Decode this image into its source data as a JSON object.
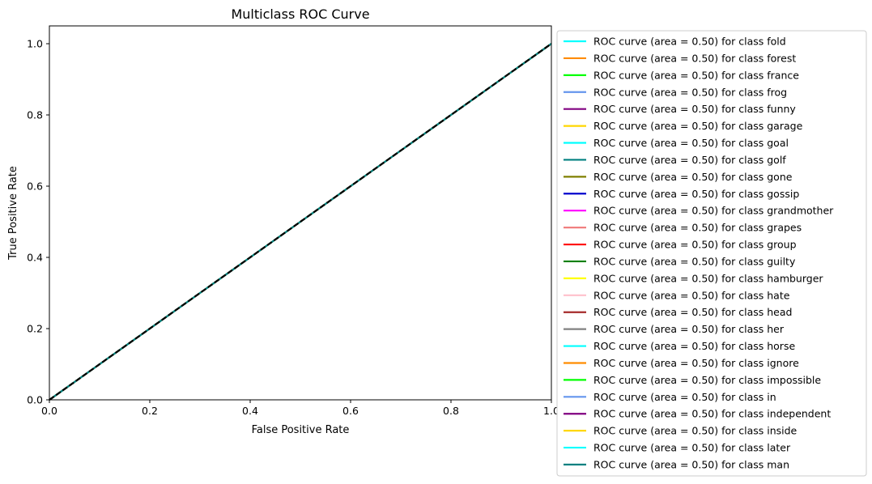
{
  "chart_data": {
    "type": "line",
    "title": "Multiclass ROC Curve",
    "xlabel": "False Positive Rate",
    "ylabel": "True Positive Rate",
    "xlim": [
      0.0,
      1.0
    ],
    "ylim": [
      0.0,
      1.05
    ],
    "x_ticks": [
      "0.0",
      "0.2",
      "0.4",
      "0.6",
      "0.8",
      "1.0"
    ],
    "y_ticks": [
      "0.0",
      "0.2",
      "0.4",
      "0.6",
      "0.8",
      "1.0"
    ],
    "grid": false,
    "legend_position": "outside-right",
    "diagonal": {
      "x": [
        0,
        1
      ],
      "y": [
        0,
        1
      ],
      "color": "#000000",
      "style": "dashed"
    },
    "series": [
      {
        "name": "ROC curve (area = 0.50) for class fold",
        "color": "#00ffff",
        "x": [
          0,
          1
        ],
        "y": [
          0,
          1
        ]
      },
      {
        "name": "ROC curve (area = 0.50) for class forest",
        "color": "#ff8c00",
        "x": [
          0,
          1
        ],
        "y": [
          0,
          1
        ]
      },
      {
        "name": "ROC curve (area = 0.50) for class france",
        "color": "#00ff00",
        "x": [
          0,
          1
        ],
        "y": [
          0,
          1
        ]
      },
      {
        "name": "ROC curve (area = 0.50) for class frog",
        "color": "#6495ed",
        "x": [
          0,
          1
        ],
        "y": [
          0,
          1
        ]
      },
      {
        "name": "ROC curve (area = 0.50) for class funny",
        "color": "#800080",
        "x": [
          0,
          1
        ],
        "y": [
          0,
          1
        ]
      },
      {
        "name": "ROC curve (area = 0.50) for class garage",
        "color": "#ffd700",
        "x": [
          0,
          1
        ],
        "y": [
          0,
          1
        ]
      },
      {
        "name": "ROC curve (area = 0.50) for class goal",
        "color": "#00ffff",
        "x": [
          0,
          1
        ],
        "y": [
          0,
          1
        ]
      },
      {
        "name": "ROC curve (area = 0.50) for class golf",
        "color": "#008080",
        "x": [
          0,
          1
        ],
        "y": [
          0,
          1
        ]
      },
      {
        "name": "ROC curve (area = 0.50) for class gone",
        "color": "#808000",
        "x": [
          0,
          1
        ],
        "y": [
          0,
          1
        ]
      },
      {
        "name": "ROC curve (area = 0.50) for class gossip",
        "color": "#0000cd",
        "x": [
          0,
          1
        ],
        "y": [
          0,
          1
        ]
      },
      {
        "name": "ROC curve (area = 0.50) for class grandmother",
        "color": "#ff00ff",
        "x": [
          0,
          1
        ],
        "y": [
          0,
          1
        ]
      },
      {
        "name": "ROC curve (area = 0.50) for class grapes",
        "color": "#f08080",
        "x": [
          0,
          1
        ],
        "y": [
          0,
          1
        ]
      },
      {
        "name": "ROC curve (area = 0.50) for class group",
        "color": "#ff0000",
        "x": [
          0,
          1
        ],
        "y": [
          0,
          1
        ]
      },
      {
        "name": "ROC curve (area = 0.50) for class guilty",
        "color": "#008000",
        "x": [
          0,
          1
        ],
        "y": [
          0,
          1
        ]
      },
      {
        "name": "ROC curve (area = 0.50) for class hamburger",
        "color": "#ffff00",
        "x": [
          0,
          1
        ],
        "y": [
          0,
          1
        ]
      },
      {
        "name": "ROC curve (area = 0.50) for class hate",
        "color": "#ffc0cb",
        "x": [
          0,
          1
        ],
        "y": [
          0,
          1
        ]
      },
      {
        "name": "ROC curve (area = 0.50) for class head",
        "color": "#a52a2a",
        "x": [
          0,
          1
        ],
        "y": [
          0,
          1
        ]
      },
      {
        "name": "ROC curve (area = 0.50) for class her",
        "color": "#808080",
        "x": [
          0,
          1
        ],
        "y": [
          0,
          1
        ]
      },
      {
        "name": "ROC curve (area = 0.50) for class horse",
        "color": "#00ffff",
        "x": [
          0,
          1
        ],
        "y": [
          0,
          1
        ]
      },
      {
        "name": "ROC curve (area = 0.50) for class ignore",
        "color": "#ff8c00",
        "x": [
          0,
          1
        ],
        "y": [
          0,
          1
        ]
      },
      {
        "name": "ROC curve (area = 0.50) for class impossible",
        "color": "#00ff00",
        "x": [
          0,
          1
        ],
        "y": [
          0,
          1
        ]
      },
      {
        "name": "ROC curve (area = 0.50) for class in",
        "color": "#6495ed",
        "x": [
          0,
          1
        ],
        "y": [
          0,
          1
        ]
      },
      {
        "name": "ROC curve (area = 0.50) for class independent",
        "color": "#800080",
        "x": [
          0,
          1
        ],
        "y": [
          0,
          1
        ]
      },
      {
        "name": "ROC curve (area = 0.50) for class inside",
        "color": "#ffd700",
        "x": [
          0,
          1
        ],
        "y": [
          0,
          1
        ]
      },
      {
        "name": "ROC curve (area = 0.50) for class later",
        "color": "#00ffff",
        "x": [
          0,
          1
        ],
        "y": [
          0,
          1
        ]
      },
      {
        "name": "ROC curve (area = 0.50) for class man",
        "color": "#008080",
        "x": [
          0,
          1
        ],
        "y": [
          0,
          1
        ]
      }
    ]
  }
}
